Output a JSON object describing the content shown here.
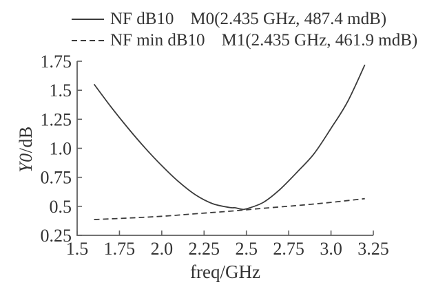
{
  "figure": {
    "background": "#ffffff",
    "text_color": "#333333",
    "axis_color": "#5f5f5f",
    "curve_color": "#3b3b3b"
  },
  "chart_data": {
    "type": "line",
    "title": "",
    "xlabel": "freq/GHz",
    "ylabel": "Y0/dB",
    "ylabel_var": "Y0",
    "ylabel_rest": "/dB",
    "xlim": [
      1.5,
      3.25
    ],
    "ylim": [
      0.25,
      1.75
    ],
    "grid": false,
    "legend_position": "top-left",
    "x_ticks": {
      "values": [
        1.5,
        1.75,
        2.0,
        2.25,
        2.5,
        2.75,
        3.0,
        3.25
      ],
      "labels": [
        "1.5",
        "1.75",
        "2.0",
        "2.25",
        "2.5",
        "2.75",
        "3.0",
        "3.25"
      ]
    },
    "y_ticks": {
      "values": [
        0.25,
        0.5,
        0.75,
        1.0,
        1.25,
        1.5,
        1.75
      ],
      "labels": [
        "0.25",
        "0.5",
        "0.75",
        "1.0",
        "1.25",
        "1.5",
        "1.75"
      ]
    },
    "series": [
      {
        "name": "NF dB10",
        "line_style": "solid",
        "marker_text": "M0(2.435 GHz, 487.4 mdB)",
        "marker": {
          "id": "M0",
          "freq_ghz": 2.435,
          "value_mdb": 487.4
        },
        "x": [
          1.6,
          1.7,
          1.8,
          1.9,
          2.0,
          2.1,
          2.2,
          2.3,
          2.4,
          2.435,
          2.47,
          2.5,
          2.6,
          2.7,
          2.8,
          2.9,
          3.0,
          3.1,
          3.2
        ],
        "y": [
          1.552,
          1.357,
          1.175,
          1.005,
          0.85,
          0.712,
          0.598,
          0.523,
          0.49,
          0.4874,
          0.476,
          0.478,
          0.534,
          0.648,
          0.795,
          0.954,
          1.172,
          1.407,
          1.72
        ]
      },
      {
        "name": "NF min dB10",
        "line_style": "dashed",
        "marker_text": "M1(2.435 GHz, 461.9 mdB)",
        "marker": {
          "id": "M1",
          "freq_ghz": 2.435,
          "value_mdb": 461.9
        },
        "x": [
          1.6,
          1.8,
          2.0,
          2.2,
          2.435,
          2.6,
          2.8,
          3.0,
          3.2
        ],
        "y": [
          0.386,
          0.399,
          0.414,
          0.436,
          0.4619,
          0.483,
          0.507,
          0.534,
          0.566
        ]
      }
    ]
  }
}
